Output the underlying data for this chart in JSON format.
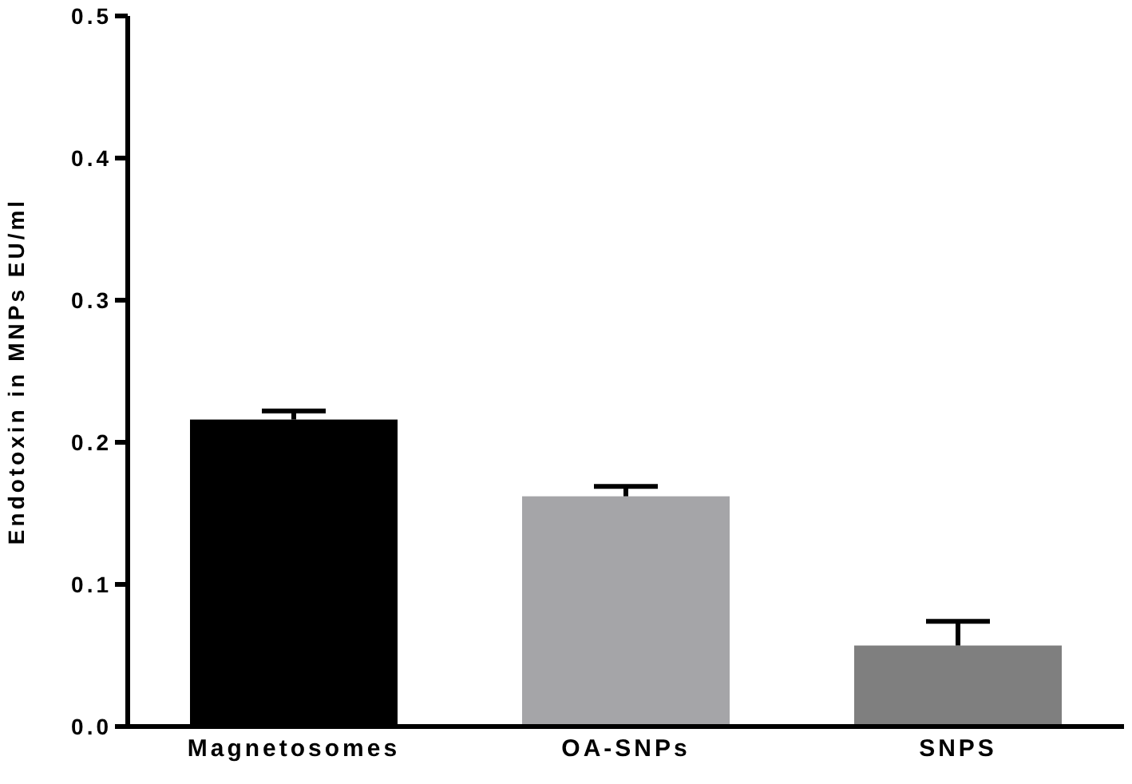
{
  "chart_data": {
    "type": "bar",
    "ylabel": "Endotoxin in MNPs EU/ml",
    "categories": [
      "Magnetosomes",
      "OA-SNPs",
      "SNPS"
    ],
    "values": [
      0.216,
      0.162,
      0.057
    ],
    "errors": [
      [
        0.216,
        0.222
      ],
      [
        0.162,
        0.169
      ],
      [
        0.057,
        0.074
      ]
    ],
    "colors": [
      "#000000",
      "#a5a5a8",
      "#7f7f7f"
    ],
    "ylim": [
      0,
      0.5
    ],
    "yticks": [
      {
        "value": 0,
        "label": "0.0"
      },
      {
        "value": 0.1,
        "label": "0.1"
      },
      {
        "value": 0.2,
        "label": "0.2"
      },
      {
        "value": 0.3,
        "label": "0.3"
      },
      {
        "value": 0.4,
        "label": "0.4"
      },
      {
        "value": 0.5,
        "label": "0.5"
      }
    ],
    "grid": false,
    "legend": false
  }
}
